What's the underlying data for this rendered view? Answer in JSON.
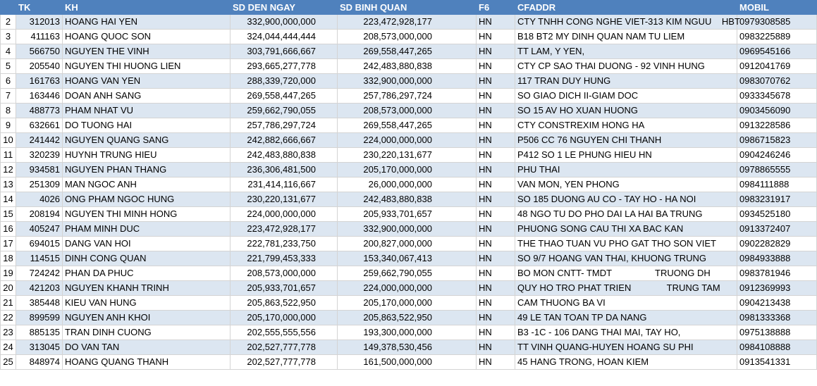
{
  "table": {
    "columns": [
      "TK",
      "KH",
      "SD DEN NGAY",
      "SD BINH QUAN",
      "F6",
      "CFADDR",
      "MOBIL"
    ],
    "row_numbers": [
      "2",
      "3",
      "4",
      "5",
      "6",
      "7",
      "8",
      "9",
      "10",
      "11",
      "12",
      "13",
      "14",
      "15",
      "16",
      "17",
      "18",
      "19",
      "20",
      "21",
      "22",
      "23",
      "24",
      "25"
    ],
    "rows": [
      [
        "312013",
        "HOANG HAI YEN",
        "332,900,000,000",
        "223,472,928,177",
        "HN",
        "CTY TNHH CONG NGHE VIET-313 KIM NGUU    HBT",
        "0979308585"
      ],
      [
        "411163",
        "HOANG QUOC SON",
        "324,044,444,444",
        "208,573,000,000",
        "HN",
        "B18 BT2 MY DINH QUAN NAM TU LIEM",
        "0983225889"
      ],
      [
        "566750",
        "NGUYEN THE VINH",
        "303,791,666,667",
        "269,558,447,265",
        "HN",
        "TT LAM, Y YEN,",
        "0969545166"
      ],
      [
        "205540",
        "NGUYEN THI HUONG LIEN",
        "293,665,277,778",
        "242,483,880,838",
        "HN",
        "CTY CP SAO THAI DUONG - 92 VINH HUNG",
        "0912041769"
      ],
      [
        "161763",
        "HOANG VAN YEN",
        "288,339,720,000",
        "332,900,000,000",
        "HN",
        "117 TRAN DUY HUNG",
        "0983070762"
      ],
      [
        "163446",
        "DOAN ANH SANG",
        "269,558,447,265",
        "257,786,297,724",
        "HN",
        "SO GIAO DICH II-GIAM DOC",
        "0933345678"
      ],
      [
        "488773",
        "PHAM NHAT VU",
        "259,662,790,055",
        "208,573,000,000",
        "HN",
        "SO 15 AV HO XUAN HUONG",
        "0903456090"
      ],
      [
        "632661",
        "DO TUONG HAI",
        "257,786,297,724",
        "269,558,447,265",
        "HN",
        "CTY CONSTREXIM HONG HA",
        "0913228586"
      ],
      [
        "241442",
        "NGUYEN QUANG SANG",
        "242,882,666,667",
        "224,000,000,000",
        "HN",
        "P506 CC 76 NGUYEN CHI THANH",
        "0986715823"
      ],
      [
        "320239",
        "HUYNH TRUNG HIEU",
        "242,483,880,838",
        "230,220,131,677",
        "HN",
        "P412 SO 1 LE PHUNG HIEU HN",
        "0904246246"
      ],
      [
        "934581",
        "NGUYEN PHAN THANG",
        "236,306,481,500",
        "205,170,000,000",
        "HN",
        "PHU THAI",
        "0978865555"
      ],
      [
        "251309",
        "MAN NGOC ANH",
        "231,414,116,667",
        "26,000,000,000",
        "HN",
        "VAN MON, YEN PHONG",
        "0984111888"
      ],
      [
        "4026",
        "ONG PHAM NGOC HUNG",
        "230,220,131,677",
        "242,483,880,838",
        "HN",
        "SO 185 DUONG AU CO - TAY HO - HA NOI",
        "0983231917"
      ],
      [
        "208194",
        "NGUYEN THI MINH HONG",
        "224,000,000,000",
        "205,933,701,657",
        "HN",
        "48 NGO TU DO PHO DAI LA HAI BA TRUNG",
        "0934525180"
      ],
      [
        "405247",
        "PHAM MINH DUC",
        "223,472,928,177",
        "332,900,000,000",
        "HN",
        "PHUONG SONG CAU THI XA BAC KAN",
        "0913372407"
      ],
      [
        "694015",
        "DANG VAN HOI",
        "222,781,233,750",
        "200,827,000,000",
        "HN",
        "THE THAO TUAN VU PHO GAT THO SON VIET",
        "0902282829"
      ],
      [
        "114515",
        "DINH CONG QUAN",
        "221,799,453,333",
        "153,340,067,413",
        "HN",
        "SO 9/7 HOANG VAN THAI, KHUONG TRUNG",
        "0984933888"
      ],
      [
        "724242",
        "PHAN DA PHUC",
        "208,573,000,000",
        "259,662,790,055",
        "HN",
        "BO MON CNTT- TMDT                 TRUONG DH",
        "0983781946"
      ],
      [
        "421203",
        "NGUYEN KHANH TRINH",
        "205,933,701,657",
        "224,000,000,000",
        "HN",
        "QUY HO TRO PHAT TRIEN              TRUNG TAM",
        "0912369993"
      ],
      [
        "385448",
        "KIEU VAN HUNG",
        "205,863,522,950",
        "205,170,000,000",
        "HN",
        "CAM THUONG BA VI",
        "0904213438"
      ],
      [
        "899599",
        "NGUYEN ANH KHOI",
        "205,170,000,000",
        "205,863,522,950",
        "HN",
        "49 LE TAN TOAN TP DA NANG",
        "0981333368"
      ],
      [
        "885135",
        "TRAN DINH CUONG",
        "202,555,555,556",
        "193,300,000,000",
        "HN",
        "B3 -1C - 106 DANG THAI MAI, TAY HO,",
        "0975138888"
      ],
      [
        "313045",
        "DO VAN TAN",
        "202,527,777,778",
        "149,378,530,456",
        "HN",
        "TT VINH QUANG-HUYEN HOANG SU PHI",
        "0984108888"
      ],
      [
        "848974",
        "HOANG QUANG THANH",
        "202,527,777,778",
        "161,500,000,000",
        "HN",
        "45 HANG TRONG, HOAN KIEM",
        "0913541331"
      ]
    ]
  }
}
